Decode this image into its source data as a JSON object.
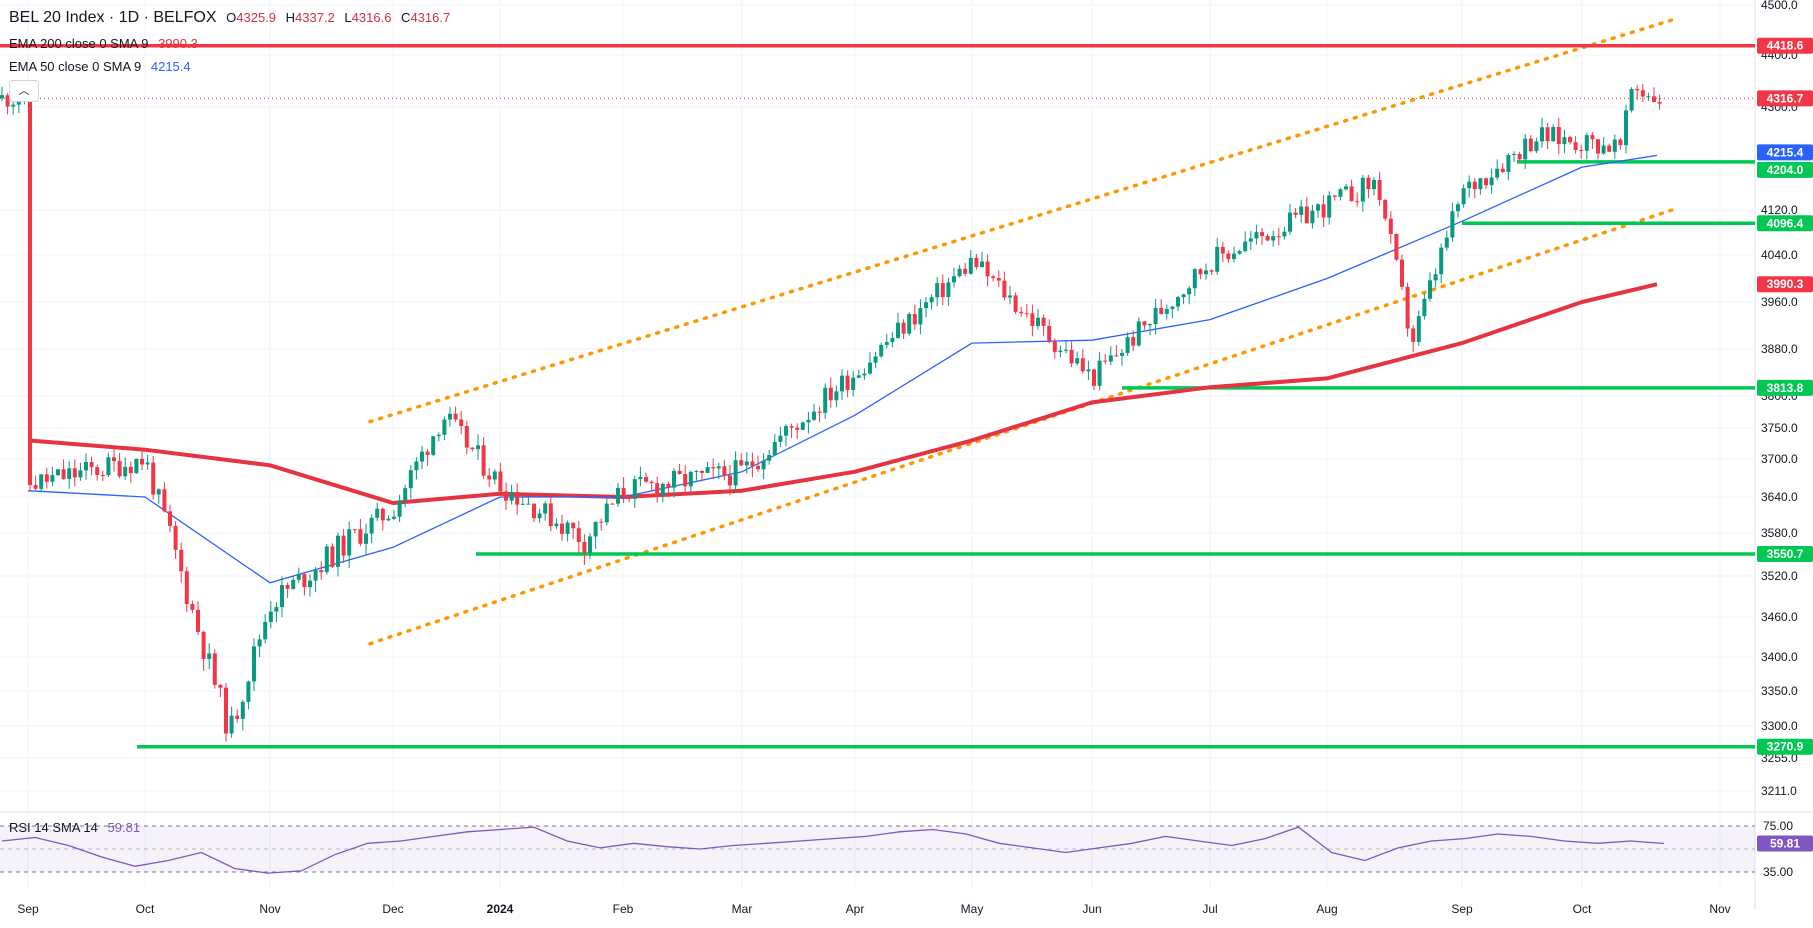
{
  "header": {
    "symbol": "BEL 20 Index · 1D · BELFOX",
    "ohlc": {
      "o_label": "O",
      "o": "4325.9",
      "h_label": "H",
      "h": "4337.2",
      "l_label": "L",
      "l": "4316.6",
      "c_label": "C",
      "c": "4316.7"
    }
  },
  "indicators": {
    "ema200": {
      "label": "EMA 200 close 0 SMA 9",
      "value": "3990.3",
      "color": "#e53341"
    },
    "ema50": {
      "label": "EMA 50 close 0 SMA 9",
      "value": "4215.4",
      "color": "#2962ff"
    },
    "collapse_icon": "chevron-up-icon"
  },
  "rsi": {
    "label": "RSI 14 SMA 14",
    "value": "59.81",
    "color": "#7e57c2",
    "upper": "75.00",
    "lower": "35.00"
  },
  "colors": {
    "up": "#089981",
    "down": "#f23645",
    "trend": "#ff9800",
    "support": "#00c853",
    "ema200": "#e53341",
    "ema50": "#2962ff",
    "rsi": "#7e57c2"
  },
  "chart_data": {
    "type": "candlestick",
    "symbol": "BEL 20 Index",
    "interval": "1D",
    "y_ticks": [
      "4500.0",
      "4400.0",
      "4300.0",
      "4120.0",
      "4040.0",
      "3960.0",
      "3880.0",
      "3800.0",
      "3750.0",
      "3700.0",
      "3640.0",
      "3580.0",
      "3520.0",
      "3460.0",
      "3400.0",
      "3350.0",
      "3300.0",
      "3255.0",
      "3211.0"
    ],
    "x_ticks": [
      "Sep",
      "Oct",
      "Nov",
      "Dec",
      "2024",
      "Feb",
      "Mar",
      "Apr",
      "May",
      "Jun",
      "Jul",
      "Aug",
      "Sep",
      "Oct",
      "Nov"
    ],
    "price_labels": [
      {
        "value": "4418.6",
        "color": "#f23645"
      },
      {
        "value": "4316.7",
        "color": "#f23645"
      },
      {
        "value": "4215.4",
        "color": "#2962ff"
      },
      {
        "value": "4204.0",
        "color": "#00c853"
      },
      {
        "value": "4096.4",
        "color": "#00c853"
      },
      {
        "value": "3990.3",
        "color": "#f23645"
      },
      {
        "value": "3813.8",
        "color": "#00c853"
      },
      {
        "value": "3550.7",
        "color": "#00c853"
      },
      {
        "value": "3270.9",
        "color": "#00c853"
      }
    ],
    "resistance": 4418.6,
    "last_close": 4316.7,
    "horizontal_supports": [
      {
        "value": 4204.0,
        "from": "Sep 2024",
        "to": "Nov 2024"
      },
      {
        "value": 4096.4,
        "from": "Sep 2024",
        "to": "Nov 2024"
      },
      {
        "value": 3813.8,
        "from": "Jun 2024",
        "to": "Nov 2024"
      },
      {
        "value": 3550.7,
        "from": "Dec 2023",
        "to": "Nov 2024"
      },
      {
        "value": 3270.9,
        "from": "Oct 2023",
        "to": "Nov 2024"
      }
    ],
    "trend_channel": {
      "upper": [
        {
          "date": "Nov 2023",
          "value": 3760
        },
        {
          "date": "Oct 2024",
          "value": 4470
        }
      ],
      "lower": [
        {
          "date": "Nov 2023",
          "value": 3420
        },
        {
          "date": "Oct 2024",
          "value": 4120
        }
      ]
    },
    "ema200_points": [
      {
        "date": "Sep 2023",
        "value": 3730
      },
      {
        "date": "Oct 2023",
        "value": 3715
      },
      {
        "date": "Nov 2023",
        "value": 3690
      },
      {
        "date": "Dec 2023",
        "value": 3630
      },
      {
        "date": "Jan 2024",
        "value": 3645
      },
      {
        "date": "Feb 2024",
        "value": 3640
      },
      {
        "date": "Mar 2024",
        "value": 3650
      },
      {
        "date": "Apr 2024",
        "value": 3680
      },
      {
        "date": "May 2024",
        "value": 3730
      },
      {
        "date": "Jun 2024",
        "value": 3790
      },
      {
        "date": "Jul 2024",
        "value": 3815
      },
      {
        "date": "Aug 2024",
        "value": 3830
      },
      {
        "date": "Sep 2024",
        "value": 3890
      },
      {
        "date": "Oct 2024",
        "value": 3960
      },
      {
        "date": "Oct 2024 end",
        "value": 3990.3
      }
    ],
    "ema50_points": [
      {
        "date": "Sep 2023",
        "value": 3650
      },
      {
        "date": "Oct 2023",
        "value": 3640
      },
      {
        "date": "Nov 2023",
        "value": 3510
      },
      {
        "date": "Dec 2023",
        "value": 3560
      },
      {
        "date": "Jan 2024",
        "value": 3640
      },
      {
        "date": "Feb 2024",
        "value": 3640
      },
      {
        "date": "Mar 2024",
        "value": 3680
      },
      {
        "date": "Apr 2024",
        "value": 3770
      },
      {
        "date": "May 2024",
        "value": 3890
      },
      {
        "date": "Jun 2024",
        "value": 3895
      },
      {
        "date": "Jul 2024",
        "value": 3930
      },
      {
        "date": "Aug 2024",
        "value": 4000
      },
      {
        "date": "Sep 2024",
        "value": 4100
      },
      {
        "date": "Oct 2024",
        "value": 4195
      },
      {
        "date": "Oct 2024 end",
        "value": 4215.4
      }
    ],
    "monthly_path": [
      {
        "date": "Sep 2023",
        "value": 3660
      },
      {
        "date": "Oct 2023",
        "value": 3700
      },
      {
        "date": "Oct 2023 mid",
        "value": 3480
      },
      {
        "date": "Oct 2023 low",
        "value": 3290
      },
      {
        "date": "Nov 2023",
        "value": 3480
      },
      {
        "date": "Dec 2023",
        "value": 3620
      },
      {
        "date": "Dec 2023 high",
        "value": 3770
      },
      {
        "date": "Jan 2024",
        "value": 3660
      },
      {
        "date": "Jan 2024 low",
        "value": 3570
      },
      {
        "date": "Feb 2024",
        "value": 3650
      },
      {
        "date": "Mar 2024",
        "value": 3680
      },
      {
        "date": "Apr 2024",
        "value": 3840
      },
      {
        "date": "May 2024",
        "value": 4030
      },
      {
        "date": "Jun 2024",
        "value": 3830
      },
      {
        "date": "Jul 2024",
        "value": 4030
      },
      {
        "date": "Aug 2024 high",
        "value": 4170
      },
      {
        "date": "Aug 2024 low",
        "value": 3890
      },
      {
        "date": "Sep 2024",
        "value": 4150
      },
      {
        "date": "Sep 2024 end",
        "value": 4250
      },
      {
        "date": "Oct 2024 high",
        "value": 4340
      },
      {
        "date": "Oct 2024 dip",
        "value": 4230
      },
      {
        "date": "Oct 2024 last",
        "value": 4316.7
      }
    ],
    "rsi_values": [
      62,
      65,
      58,
      48,
      40,
      45,
      52,
      38,
      34,
      36,
      50,
      60,
      62,
      66,
      70,
      72,
      74,
      62,
      56,
      60,
      57,
      55,
      58,
      60,
      62,
      64,
      66,
      70,
      72,
      68,
      60,
      56,
      52,
      56,
      60,
      66,
      62,
      58,
      64,
      74,
      52,
      45,
      56,
      62,
      64,
      68,
      66,
      62,
      60,
      62,
      59.81
    ]
  }
}
